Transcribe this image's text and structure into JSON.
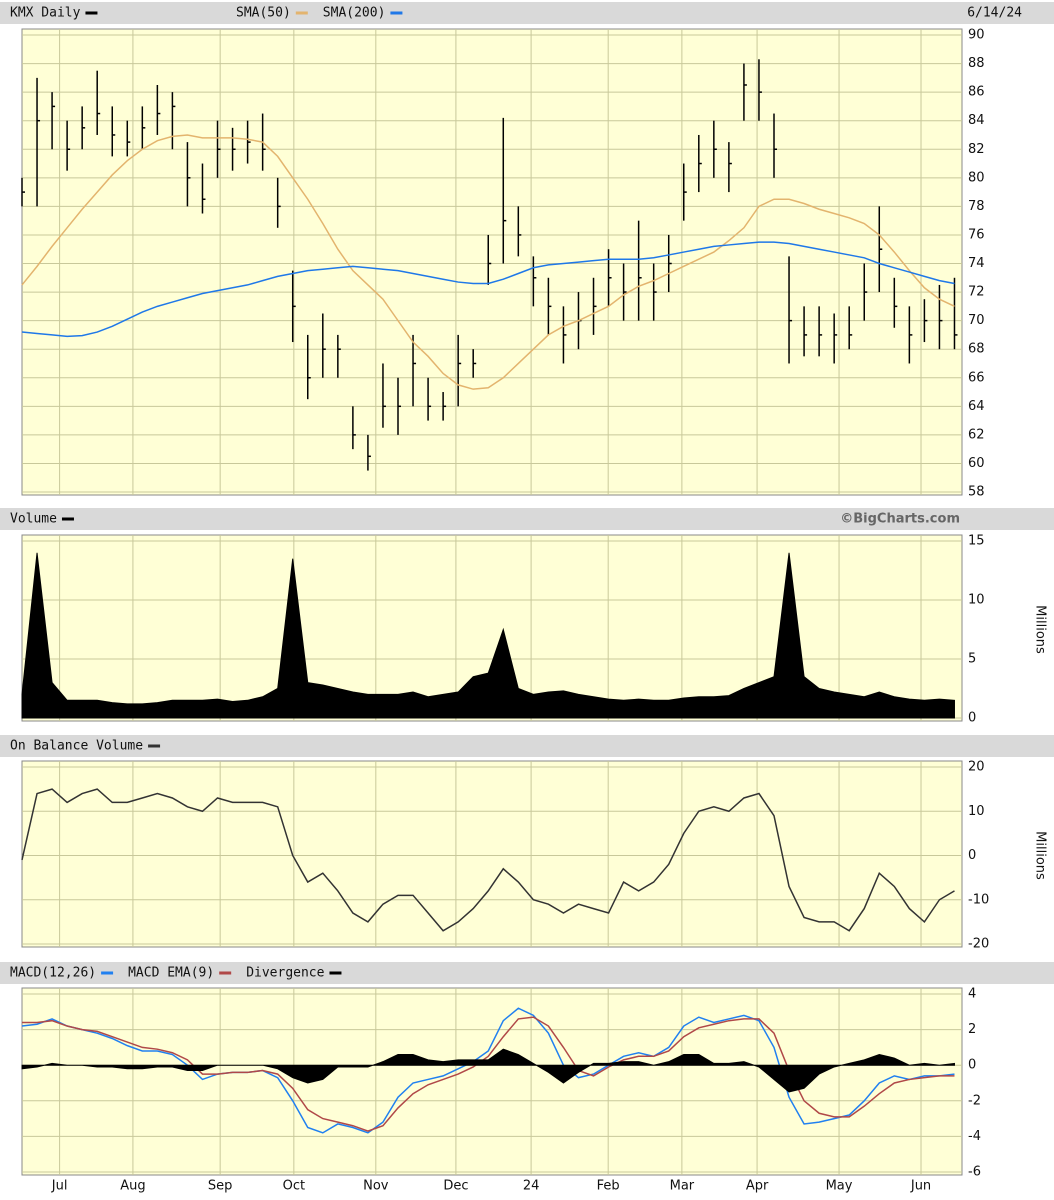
{
  "chart_data": [
    {
      "type": "ohlc",
      "date": "6/14/24",
      "xlim": [
        0,
        250
      ],
      "x": [
        0,
        4,
        8,
        12,
        16,
        20,
        24,
        28,
        32,
        36,
        40,
        44,
        48,
        52,
        56,
        60,
        64,
        68,
        72,
        76,
        80,
        84,
        88,
        92,
        96,
        100,
        104,
        108,
        112,
        116,
        120,
        124,
        128,
        132,
        136,
        140,
        144,
        148,
        152,
        156,
        160,
        164,
        168,
        172,
        176,
        180,
        184,
        188,
        192,
        196,
        200,
        204,
        208,
        212,
        216,
        220,
        224,
        228,
        232,
        236,
        240,
        244,
        248
      ],
      "ylim": [
        58,
        90
      ],
      "yticks": [
        58,
        60,
        62,
        64,
        66,
        68,
        70,
        72,
        74,
        76,
        78,
        80,
        82,
        84,
        86,
        88,
        90
      ],
      "grid": true,
      "series": [
        {
          "name": "KMX Daily",
          "color": "#000000",
          "type": "ohlc",
          "high": [
            80,
            87,
            86,
            84,
            85,
            87.5,
            85,
            84,
            85,
            86.5,
            86,
            82.5,
            81,
            84,
            83.5,
            84,
            84.5,
            80,
            73.5,
            69,
            70.5,
            69,
            64,
            62,
            67,
            66,
            69,
            66,
            65,
            69,
            68,
            76,
            84.2,
            78,
            74.5,
            73,
            71,
            72,
            73,
            75,
            74,
            77,
            74,
            76,
            81,
            83,
            84,
            82.5,
            88,
            88.3,
            84.5,
            74.5,
            71,
            71,
            70.5,
            71,
            74,
            78,
            73,
            71,
            71.5,
            72.5,
            73
          ],
          "low": [
            78,
            78,
            82,
            80.5,
            82,
            83,
            81.5,
            81.5,
            82,
            83,
            82,
            78,
            77.5,
            80,
            80.5,
            81,
            80.5,
            76.5,
            68.5,
            64.5,
            66,
            66,
            61,
            59.5,
            62.5,
            62,
            64,
            63,
            63,
            64,
            66,
            72.5,
            74,
            74.5,
            71,
            69,
            67,
            68,
            69,
            71,
            70,
            70,
            70,
            72,
            77,
            79,
            80,
            79,
            84,
            84,
            80,
            67,
            67.5,
            67.5,
            67,
            68,
            70,
            72,
            69.5,
            67,
            68.5,
            68,
            68
          ],
          "close": [
            79,
            84,
            85,
            82,
            83.5,
            84.5,
            83,
            82.5,
            83.5,
            84.5,
            85,
            80,
            78.5,
            82,
            82,
            82.5,
            82,
            78,
            71,
            66,
            68,
            68,
            62,
            60.5,
            64,
            64,
            67,
            64,
            64,
            67,
            67,
            74,
            77,
            76,
            73,
            71,
            69,
            70,
            71,
            73,
            72,
            73,
            72,
            74,
            79,
            81,
            82,
            81,
            86.5,
            86,
            82,
            70,
            69,
            69,
            69,
            69,
            72,
            75,
            71,
            69,
            70,
            70,
            69
          ]
        },
        {
          "name": "SMA(50)",
          "color": "#e3b46e",
          "type": "line",
          "values": [
            72.5,
            73.8,
            75.2,
            76.5,
            77.8,
            79,
            80.2,
            81.2,
            82,
            82.6,
            82.9,
            83,
            82.8,
            82.8,
            82.8,
            82.7,
            82.5,
            81.5,
            80,
            78.5,
            76.8,
            75,
            73.5,
            72.5,
            71.5,
            70,
            68.5,
            67.5,
            66.3,
            65.5,
            65.2,
            65.3,
            66,
            67,
            68,
            69,
            69.6,
            70,
            70.5,
            71,
            71.8,
            72.4,
            72.8,
            73.3,
            73.8,
            74.3,
            74.8,
            75.6,
            76.5,
            78,
            78.5,
            78.5,
            78.2,
            77.8,
            77.5,
            77.2,
            76.8,
            76,
            74.8,
            73.5,
            72.3,
            71.5,
            71
          ]
        },
        {
          "name": "SMA(200)",
          "color": "#1f78e8",
          "type": "line",
          "values": [
            69.2,
            69.1,
            69.0,
            68.9,
            68.95,
            69.2,
            69.6,
            70.1,
            70.6,
            71.0,
            71.3,
            71.6,
            71.9,
            72.1,
            72.3,
            72.5,
            72.8,
            73.1,
            73.3,
            73.5,
            73.6,
            73.7,
            73.8,
            73.7,
            73.6,
            73.5,
            73.3,
            73.1,
            72.9,
            72.7,
            72.6,
            72.6,
            72.9,
            73.3,
            73.7,
            73.9,
            74.0,
            74.1,
            74.2,
            74.3,
            74.3,
            74.3,
            74.4,
            74.6,
            74.8,
            75.0,
            75.2,
            75.3,
            75.4,
            75.5,
            75.5,
            75.4,
            75.2,
            75.0,
            74.8,
            74.6,
            74.4,
            74.0,
            73.7,
            73.4,
            73.1,
            72.8,
            72.6
          ]
        }
      ]
    },
    {
      "type": "area",
      "source": "©BigCharts.com",
      "ylabel": "Millions",
      "ylim": [
        0,
        15
      ],
      "yticks": [
        0,
        5,
        10,
        15
      ],
      "grid": true,
      "series": [
        {
          "name": "Volume",
          "color": "#000000",
          "values": [
            2,
            14,
            3,
            1.5,
            1.5,
            1.5,
            1.3,
            1.2,
            1.2,
            1.3,
            1.5,
            1.5,
            1.5,
            1.6,
            1.4,
            1.5,
            1.8,
            2.5,
            13.5,
            3,
            2.8,
            2.5,
            2.2,
            2.0,
            2.0,
            2.0,
            2.2,
            1.8,
            2.0,
            2.2,
            3.5,
            3.8,
            7.5,
            2.5,
            2.0,
            2.2,
            2.3,
            2.0,
            1.8,
            1.6,
            1.5,
            1.6,
            1.5,
            1.5,
            1.7,
            1.8,
            1.8,
            1.9,
            2.5,
            3,
            3.5,
            14,
            3.5,
            2.5,
            2.2,
            2.0,
            1.8,
            2.2,
            1.8,
            1.6,
            1.5,
            1.6,
            1.5
          ]
        }
      ]
    },
    {
      "type": "line",
      "ylabel": "Millions",
      "ylim": [
        -20,
        20
      ],
      "yticks": [
        -20,
        -10,
        0,
        10,
        20
      ],
      "grid": true,
      "series": [
        {
          "name": "On Balance Volume",
          "color": "#333333",
          "values": [
            -1,
            14,
            15,
            12,
            14,
            15,
            12,
            12,
            13,
            14,
            13,
            11,
            10,
            13,
            12,
            12,
            12,
            11,
            0,
            -6,
            -4,
            -8,
            -13,
            -15,
            -11,
            -9,
            -9,
            -13,
            -17,
            -15,
            -12,
            -8,
            -3,
            -6,
            -10,
            -11,
            -13,
            -11,
            -12,
            -13,
            -6,
            -8,
            -6,
            -2,
            5,
            10,
            11,
            10,
            13,
            14,
            9,
            -7,
            -14,
            -15,
            -15,
            -17,
            -12,
            -4,
            -7,
            -12,
            -15,
            -10,
            -8
          ]
        }
      ]
    },
    {
      "type": "line",
      "ylim": [
        -6,
        4
      ],
      "yticks": [
        -6,
        -4,
        -2,
        0,
        2,
        4
      ],
      "grid": true,
      "xticks": [
        {
          "value": 10,
          "label": "Jul"
        },
        {
          "value": 29.5,
          "label": "Aug"
        },
        {
          "value": 52.7,
          "label": "Sep"
        },
        {
          "value": 72.3,
          "label": "Oct"
        },
        {
          "value": 94.1,
          "label": "Nov"
        },
        {
          "value": 115.4,
          "label": "Dec"
        },
        {
          "value": 135.4,
          "label": "24"
        },
        {
          "value": 155.9,
          "label": "Feb"
        },
        {
          "value": 175.5,
          "label": "Mar"
        },
        {
          "value": 195.5,
          "label": "Apr"
        },
        {
          "value": 217.3,
          "label": "May"
        },
        {
          "value": 239.1,
          "label": "Jun"
        }
      ],
      "series": [
        {
          "name": "MACD(12,26)",
          "color": "#2080f0",
          "type": "line",
          "values": [
            2.2,
            2.3,
            2.6,
            2.2,
            2.0,
            1.8,
            1.5,
            1.1,
            0.8,
            0.8,
            0.6,
            0,
            -0.8,
            -0.5,
            -0.4,
            -0.4,
            -0.3,
            -0.7,
            -2.0,
            -3.5,
            -3.8,
            -3.3,
            -3.5,
            -3.8,
            -3.2,
            -1.8,
            -1.0,
            -0.8,
            -0.6,
            -0.2,
            0.2,
            0.8,
            2.5,
            3.2,
            2.8,
            1.8,
            0,
            -0.7,
            -0.5,
            0,
            0.5,
            0.7,
            0.5,
            1.0,
            2.2,
            2.7,
            2.4,
            2.6,
            2.8,
            2.5,
            1.0,
            -1.8,
            -3.3,
            -3.2,
            -3.0,
            -2.8,
            -2.0,
            -1.0,
            -0.6,
            -0.8,
            -0.6,
            -0.6,
            -0.5
          ]
        },
        {
          "name": "MACD EMA(9)",
          "color": "#b04848",
          "type": "line",
          "values": [
            2.4,
            2.4,
            2.5,
            2.2,
            2.0,
            1.9,
            1.6,
            1.3,
            1.0,
            0.9,
            0.7,
            0.3,
            -0.5,
            -0.5,
            -0.4,
            -0.4,
            -0.3,
            -0.5,
            -1.3,
            -2.5,
            -3.0,
            -3.2,
            -3.4,
            -3.7,
            -3.4,
            -2.4,
            -1.6,
            -1.1,
            -0.8,
            -0.5,
            -0.1,
            0.5,
            1.6,
            2.6,
            2.7,
            2.2,
            1.0,
            -0.3,
            -0.6,
            -0.1,
            0.3,
            0.5,
            0.5,
            0.8,
            1.6,
            2.1,
            2.3,
            2.5,
            2.6,
            2.6,
            1.8,
            -0.3,
            -2.0,
            -2.7,
            -2.9,
            -2.9,
            -2.3,
            -1.6,
            -1.0,
            -0.8,
            -0.7,
            -0.6,
            -0.6
          ]
        },
        {
          "name": "Divergence",
          "color": "#000000",
          "type": "area",
          "values": [
            -0.2,
            -0.1,
            0.1,
            0,
            0,
            -0.1,
            -0.1,
            -0.2,
            -0.2,
            -0.1,
            -0.1,
            -0.3,
            -0.3,
            0,
            0,
            0,
            0,
            -0.2,
            -0.7,
            -1.0,
            -0.8,
            -0.1,
            -0.1,
            -0.1,
            0.2,
            0.6,
            0.6,
            0.3,
            0.2,
            0.3,
            0.3,
            0.3,
            0.9,
            0.6,
            0.1,
            -0.4,
            -1.0,
            -0.4,
            0.1,
            0.1,
            0.2,
            0.2,
            0,
            0.2,
            0.6,
            0.6,
            0.1,
            0.1,
            0.2,
            -0.1,
            -0.8,
            -1.5,
            -1.3,
            -0.5,
            -0.1,
            0.1,
            0.3,
            0.6,
            0.4,
            0,
            0.1,
            0,
            0.1
          ]
        }
      ]
    }
  ]
}
